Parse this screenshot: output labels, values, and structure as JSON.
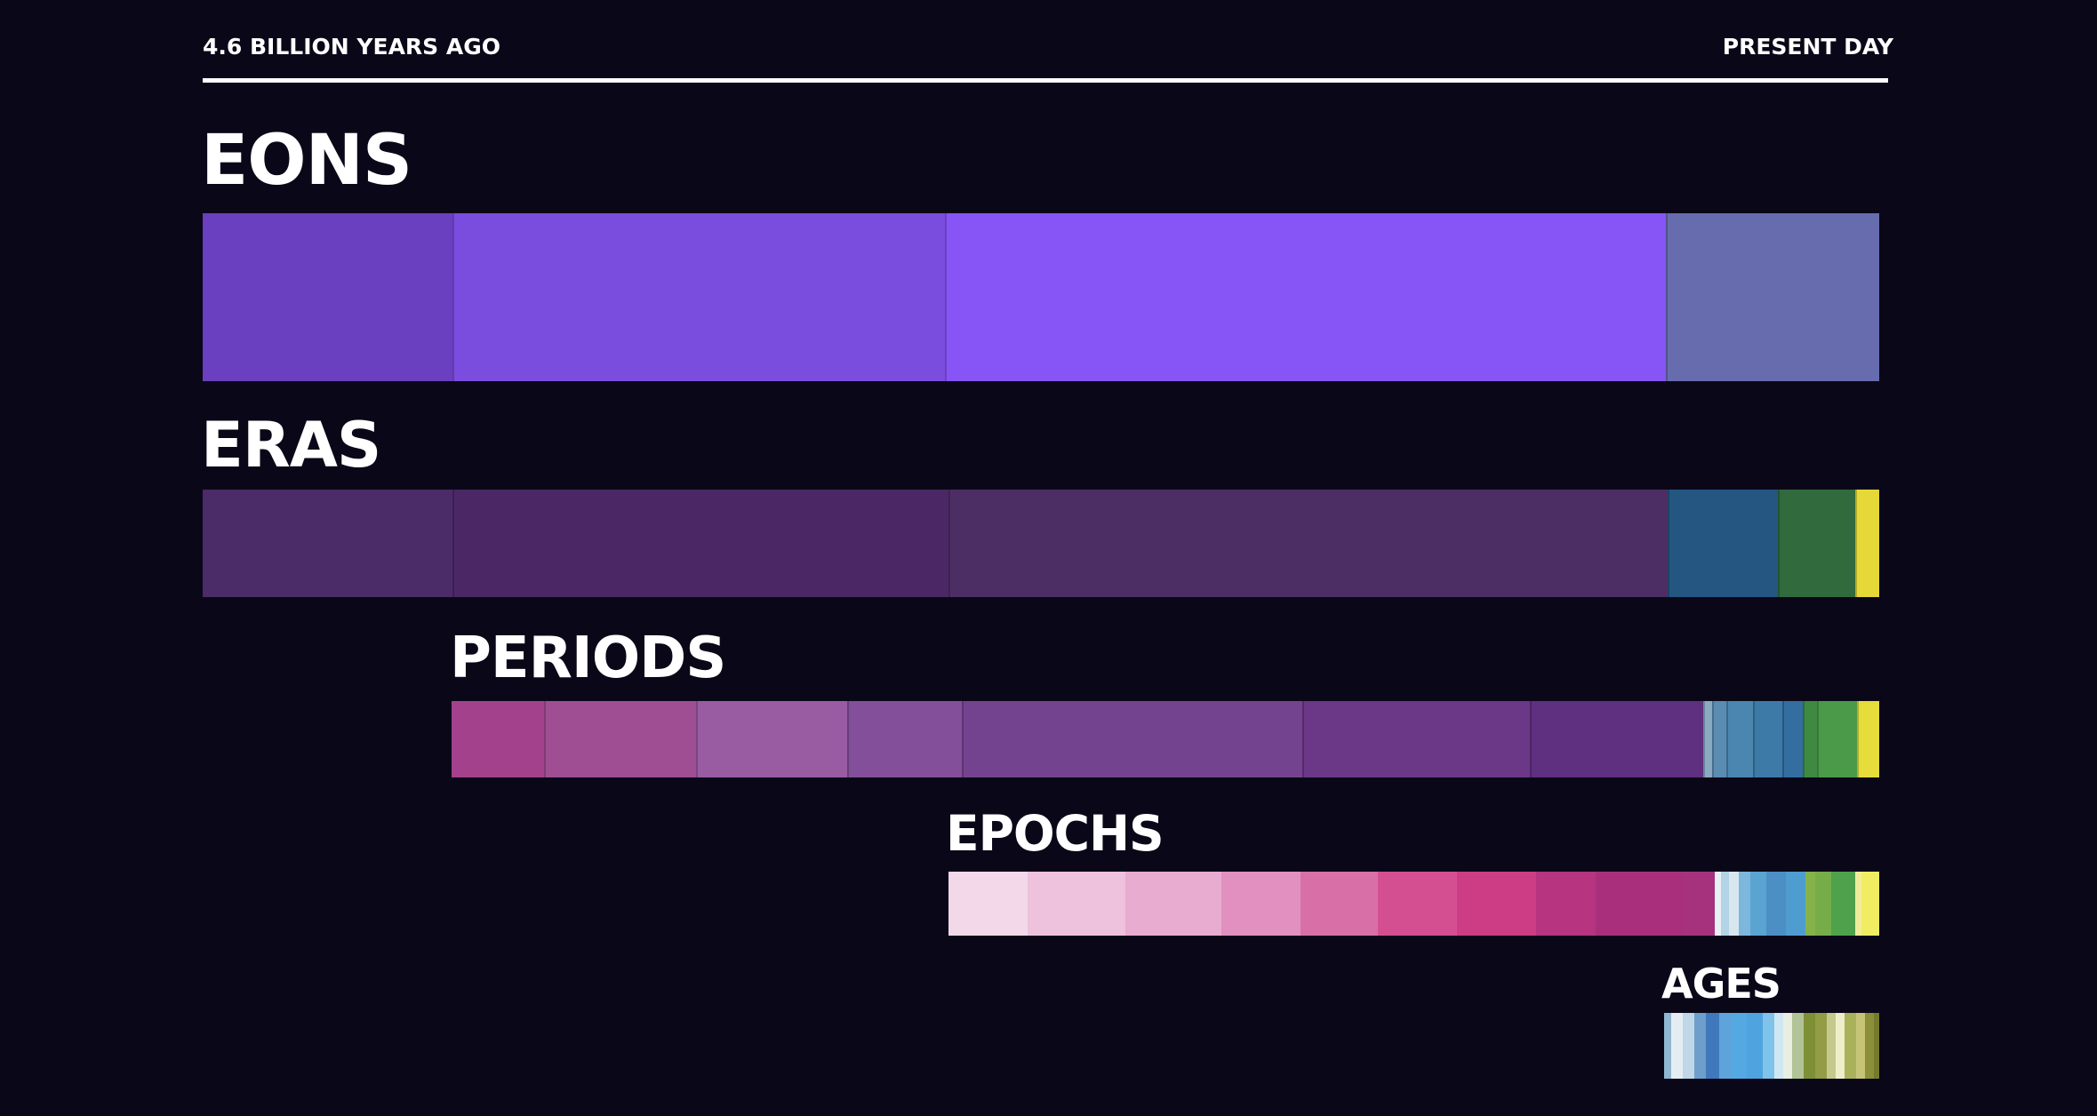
{
  "timeline": {
    "start_label": "4.6 BILLION YEARS AGO",
    "end_label": "PRESENT DAY"
  },
  "rows": [
    {
      "id": "eons",
      "title": "EONS",
      "segments": [
        {
          "share": 0.149,
          "color": "#6a3fc0"
        },
        {
          "share": 0.294,
          "color": "#7b4ddf"
        },
        {
          "share": 0.43,
          "color": "#8755f5"
        },
        {
          "share": 0.127,
          "color": "#676cae"
        }
      ]
    },
    {
      "id": "eras",
      "title": "ERAS",
      "segments": [
        {
          "share": 0.149,
          "color": "#4b2b68"
        },
        {
          "share": 0.296,
          "color": "#4b2865"
        },
        {
          "share": 0.429,
          "color": "#4d2e64"
        },
        {
          "share": 0.066,
          "color": "#245681"
        },
        {
          "share": 0.046,
          "color": "#316a3d"
        },
        {
          "share": 0.014,
          "color": "#e5d837"
        }
      ]
    },
    {
      "id": "periods",
      "title": "PERIODS",
      "segments": [
        {
          "share": 0.063,
          "color": "#a3418c"
        },
        {
          "share": 0.104,
          "color": "#9f4e94"
        },
        {
          "share": 0.103,
          "color": "#995ca3"
        },
        {
          "share": 0.078,
          "color": "#844f9a"
        },
        {
          "share": 0.232,
          "color": "#74438f"
        },
        {
          "share": 0.155,
          "color": "#6b3787"
        },
        {
          "share": 0.118,
          "color": "#5f2f80"
        },
        {
          "share": 0.006,
          "color": "#8aaac0"
        },
        {
          "share": 0.01,
          "color": "#5b8cb2"
        },
        {
          "share": 0.018,
          "color": "#4a86b0"
        },
        {
          "share": 0.02,
          "color": "#3e7aa8"
        },
        {
          "share": 0.014,
          "color": "#346ea0"
        },
        {
          "share": 0.01,
          "color": "#3f8a43"
        },
        {
          "share": 0.027,
          "color": "#4a9a4a"
        },
        {
          "share": 0.016,
          "color": "#e6dc3a"
        }
      ]
    },
    {
      "id": "epochs",
      "title": "EPOCHS",
      "segments": [
        {
          "share": 0.08,
          "color": "#f2d8e8"
        },
        {
          "share": 0.098,
          "color": "#eec1dc"
        },
        {
          "share": 0.097,
          "color": "#e8acd0"
        },
        {
          "share": 0.08,
          "color": "#e190c0"
        },
        {
          "share": 0.078,
          "color": "#d96fa7"
        },
        {
          "share": 0.08,
          "color": "#d44f91"
        },
        {
          "share": 0.08,
          "color": "#cc3d85"
        },
        {
          "share": 0.06,
          "color": "#b63480"
        },
        {
          "share": 0.087,
          "color": "#a92f7c"
        },
        {
          "share": 0.033,
          "color": "#a6327e"
        },
        {
          "share": 0.006,
          "color": "#e9f0f3"
        },
        {
          "share": 0.008,
          "color": "#b3d3e6"
        },
        {
          "share": 0.01,
          "color": "#d8e7ef"
        },
        {
          "share": 0.012,
          "color": "#7db8dc"
        },
        {
          "share": 0.016,
          "color": "#5aa4d2"
        },
        {
          "share": 0.02,
          "color": "#4b8fc4"
        },
        {
          "share": 0.02,
          "color": "#4f9dd0"
        },
        {
          "share": 0.01,
          "color": "#86b24a"
        },
        {
          "share": 0.016,
          "color": "#76ad48"
        },
        {
          "share": 0.024,
          "color": "#4fa24b"
        },
        {
          "share": 0.006,
          "color": "#f0ec9a"
        },
        {
          "share": 0.016,
          "color": "#f1ed62"
        }
      ]
    },
    {
      "id": "ages",
      "title": "AGES",
      "segments": [
        {
          "share": 0.03,
          "color": "#8fb7d1"
        },
        {
          "share": 0.05,
          "color": "#e4eef2"
        },
        {
          "share": 0.05,
          "color": "#bfd7e6"
        },
        {
          "share": 0.05,
          "color": "#6e9ecb"
        },
        {
          "share": 0.06,
          "color": "#3f79bb"
        },
        {
          "share": 0.05,
          "color": "#5ea4da"
        },
        {
          "share": 0.07,
          "color": "#55a9e3"
        },
        {
          "share": 0.07,
          "color": "#4fa4e0"
        },
        {
          "share": 0.05,
          "color": "#7fc2ea"
        },
        {
          "share": 0.04,
          "color": "#cfe7f2"
        },
        {
          "share": 0.04,
          "color": "#e8efe2"
        },
        {
          "share": 0.05,
          "color": "#b2c497"
        },
        {
          "share": 0.05,
          "color": "#7f8f36"
        },
        {
          "share": 0.05,
          "color": "#929d45"
        },
        {
          "share": 0.04,
          "color": "#c6c98c"
        },
        {
          "share": 0.04,
          "color": "#eeeeca"
        },
        {
          "share": 0.05,
          "color": "#a9b25a"
        },
        {
          "share": 0.04,
          "color": "#c8c477"
        },
        {
          "share": 0.04,
          "color": "#8c8f3a"
        },
        {
          "share": 0.04,
          "color": "#767a2c"
        }
      ]
    }
  ]
}
